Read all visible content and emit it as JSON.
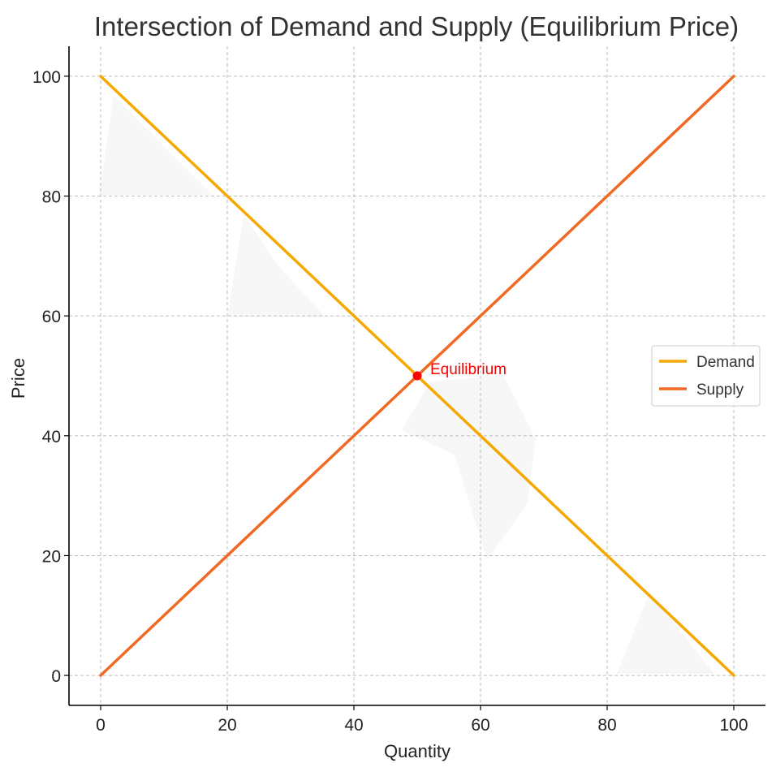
{
  "chart_data": {
    "type": "line",
    "title": "Intersection of Demand and Supply (Equilibrium Price)",
    "xlabel": "Quantity",
    "ylabel": "Price",
    "xlim": [
      -5,
      105
    ],
    "ylim": [
      -5,
      105
    ],
    "xticks": [
      0,
      20,
      40,
      60,
      80,
      100
    ],
    "yticks": [
      0,
      20,
      40,
      60,
      80,
      100
    ],
    "grid": true,
    "legend_position": "center-right",
    "series": [
      {
        "name": "Demand",
        "color": "#f5a800",
        "x": [
          0,
          100
        ],
        "y": [
          100,
          0
        ]
      },
      {
        "name": "Supply",
        "color": "#f06a24",
        "x": [
          0,
          100
        ],
        "y": [
          0,
          100
        ]
      }
    ],
    "equilibrium": {
      "label": "Equilibrium",
      "x": 50,
      "y": 50,
      "color": "#ff0000"
    }
  }
}
